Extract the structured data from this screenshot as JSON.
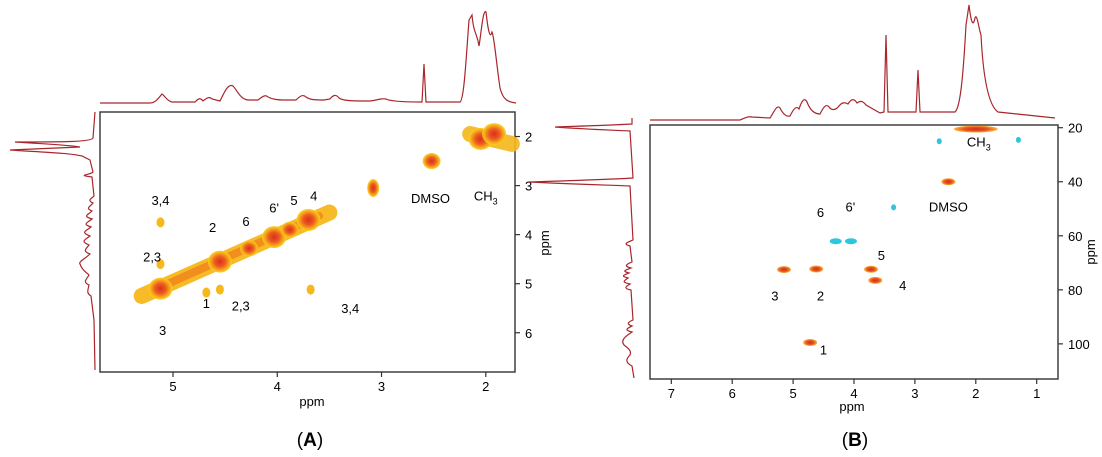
{
  "panels": [
    {
      "id": "A",
      "label_open": "(",
      "label_letter": "A",
      "label_close": ")",
      "xlabel": "ppm",
      "ylabel": "ppm",
      "xlim": [
        5.7,
        1.72
      ],
      "ylim": [
        1.5,
        6.8
      ],
      "xticks": [
        5,
        4,
        3,
        2
      ],
      "yticks": [
        2,
        3,
        4,
        5,
        6
      ],
      "grid": false,
      "annotations": [
        {
          "text": "3,4",
          "sub": "",
          "x": 5.12,
          "y": 3.4
        },
        {
          "text": "2,3",
          "sub": "",
          "x": 5.2,
          "y": 4.55
        },
        {
          "text": "3",
          "sub": "",
          "x": 5.1,
          "y": 6.05
        },
        {
          "text": "2",
          "sub": "",
          "x": 4.62,
          "y": 3.95
        },
        {
          "text": "1",
          "sub": "",
          "x": 4.68,
          "y": 5.5
        },
        {
          "text": "2,3",
          "sub": "",
          "x": 4.35,
          "y": 5.55
        },
        {
          "text": "6",
          "sub": "",
          "x": 4.3,
          "y": 3.82
        },
        {
          "text": "6'",
          "sub": "",
          "x": 4.03,
          "y": 3.55
        },
        {
          "text": "5",
          "sub": "",
          "x": 3.84,
          "y": 3.4
        },
        {
          "text": "4",
          "sub": "",
          "x": 3.65,
          "y": 3.3
        },
        {
          "text": "3,4",
          "sub": "",
          "x": 3.3,
          "y": 5.6
        },
        {
          "text": "DMSO",
          "sub": "",
          "x": 2.53,
          "y": 3.35
        },
        {
          "text": "CH",
          "sub": "3",
          "x": 2.0,
          "y": 3.3
        }
      ]
    },
    {
      "id": "B",
      "label_open": "(",
      "label_letter": "B",
      "label_close": ")",
      "xlabel": "ppm",
      "ylabel": "ppm",
      "xlim": [
        7.35,
        0.65
      ],
      "ylim": [
        19,
        113
      ],
      "xticks": [
        7,
        6,
        5,
        4,
        3,
        2,
        1
      ],
      "yticks": [
        20,
        40,
        60,
        80,
        100
      ],
      "grid": false,
      "annotations": [
        {
          "text": "6",
          "sub": "",
          "x": 4.55,
          "y": 53
        },
        {
          "text": "6'",
          "sub": "",
          "x": 4.06,
          "y": 51
        },
        {
          "text": "5",
          "sub": "",
          "x": 3.55,
          "y": 69
        },
        {
          "text": "3",
          "sub": "",
          "x": 5.3,
          "y": 84
        },
        {
          "text": "2",
          "sub": "",
          "x": 4.55,
          "y": 84
        },
        {
          "text": "4",
          "sub": "",
          "x": 3.2,
          "y": 80
        },
        {
          "text": "1",
          "sub": "",
          "x": 4.5,
          "y": 104
        },
        {
          "text": "DMSO",
          "sub": "",
          "x": 2.45,
          "y": 51
        },
        {
          "text": "CH",
          "sub": "3",
          "x": 1.95,
          "y": 27
        }
      ]
    }
  ],
  "chart_data": [
    {
      "type": "heatmap",
      "panel": "A",
      "xlabel": "ppm",
      "ylabel": "ppm",
      "xlim": [
        5.7,
        1.72
      ],
      "ylim": [
        1.5,
        6.8
      ],
      "diagonal_points": [
        {
          "x": 5.12,
          "y": 5.1,
          "intensity": "high"
        },
        {
          "x": 4.55,
          "y": 4.55,
          "intensity": "high"
        },
        {
          "x": 4.27,
          "y": 4.28,
          "intensity": "medium"
        },
        {
          "x": 4.03,
          "y": 4.05,
          "intensity": "high"
        },
        {
          "x": 3.88,
          "y": 3.9,
          "intensity": "medium"
        },
        {
          "x": 3.7,
          "y": 3.7,
          "intensity": "high"
        },
        {
          "x": 3.08,
          "y": 3.05,
          "intensity": "low"
        },
        {
          "x": 2.52,
          "y": 2.5,
          "intensity": "medium"
        },
        {
          "x": 2.05,
          "y": 2.05,
          "intensity": "high"
        },
        {
          "x": 1.92,
          "y": 1.95,
          "intensity": "high"
        }
      ],
      "cross_peaks": [
        {
          "x": 5.12,
          "y": 3.75,
          "label": "3,4"
        },
        {
          "x": 5.12,
          "y": 4.6,
          "label": "2,3"
        },
        {
          "x": 4.55,
          "y": 5.12,
          "label": "2,3"
        },
        {
          "x": 3.68,
          "y": 5.12,
          "label": "3,4"
        },
        {
          "x": 4.68,
          "y": 5.18,
          "label": "1"
        }
      ]
    },
    {
      "type": "heatmap",
      "panel": "B",
      "xlabel": "ppm",
      "ylabel": "ppm",
      "xlim": [
        7.35,
        0.65
      ],
      "ylim": [
        19,
        113
      ],
      "positive_peaks": [
        {
          "x": 2.0,
          "y": 20.5,
          "label": "CH3"
        },
        {
          "x": 2.45,
          "y": 40,
          "label": "DMSO"
        },
        {
          "x": 5.15,
          "y": 72.5,
          "label": "3"
        },
        {
          "x": 4.62,
          "y": 72.3,
          "label": "2"
        },
        {
          "x": 3.72,
          "y": 72.4,
          "label": "5"
        },
        {
          "x": 3.65,
          "y": 76.5,
          "label": "4"
        },
        {
          "x": 4.72,
          "y": 99.5,
          "label": "1"
        }
      ],
      "negative_peaks": [
        {
          "x": 4.3,
          "y": 62,
          "label": "6"
        },
        {
          "x": 4.05,
          "y": 62,
          "label": "6'"
        },
        {
          "x": 3.35,
          "y": 49.5,
          "label": ""
        },
        {
          "x": 2.6,
          "y": 25,
          "label": ""
        },
        {
          "x": 1.3,
          "y": 24.5,
          "label": ""
        }
      ]
    }
  ],
  "colors": {
    "projection": "#a8262c",
    "peak_core": "#e43a22",
    "peak_mid": "#f4761d",
    "peak_outer": "#f8c817",
    "negative_peak": "#2ec5de",
    "axis": "#333333"
  }
}
